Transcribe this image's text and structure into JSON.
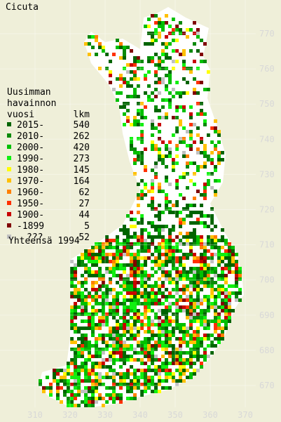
{
  "title": "Cicuta",
  "legend": {
    "heading": [
      "Uusimman",
      "havainnon"
    ],
    "col_year": "vuosi",
    "col_count": "lkm",
    "rows": [
      {
        "label": "2015-",
        "count": "540",
        "color": "#006400"
      },
      {
        "label": "2010-",
        "count": "262",
        "color": "#0a8a0a"
      },
      {
        "label": "2000-",
        "count": "420",
        "color": "#00c000"
      },
      {
        "label": "1990-",
        "count": "273",
        "color": "#10f010"
      },
      {
        "label": "1980-",
        "count": "145",
        "color": "#ffff00"
      },
      {
        "label": "1970-",
        "count": "164",
        "color": "#ffc000"
      },
      {
        "label": "1960-",
        "count": "62",
        "color": "#ff8000"
      },
      {
        "label": "1950-",
        "count": "27",
        "color": "#ff3000"
      },
      {
        "label": "1900-",
        "count": "44",
        "color": "#c80000"
      },
      {
        "label": "-1899",
        "count": "5",
        "color": "#800000"
      },
      {
        "label": "???",
        "count": "52",
        "color": "#c0c0c0"
      }
    ],
    "total": "Yhteensä 1994"
  },
  "grid": {
    "x_labels": [
      "310",
      "320",
      "330",
      "340",
      "350",
      "360",
      "370"
    ],
    "y_labels": [
      "770",
      "760",
      "750",
      "740",
      "730",
      "720",
      "710",
      "700",
      "690",
      "680",
      "670"
    ]
  }
}
